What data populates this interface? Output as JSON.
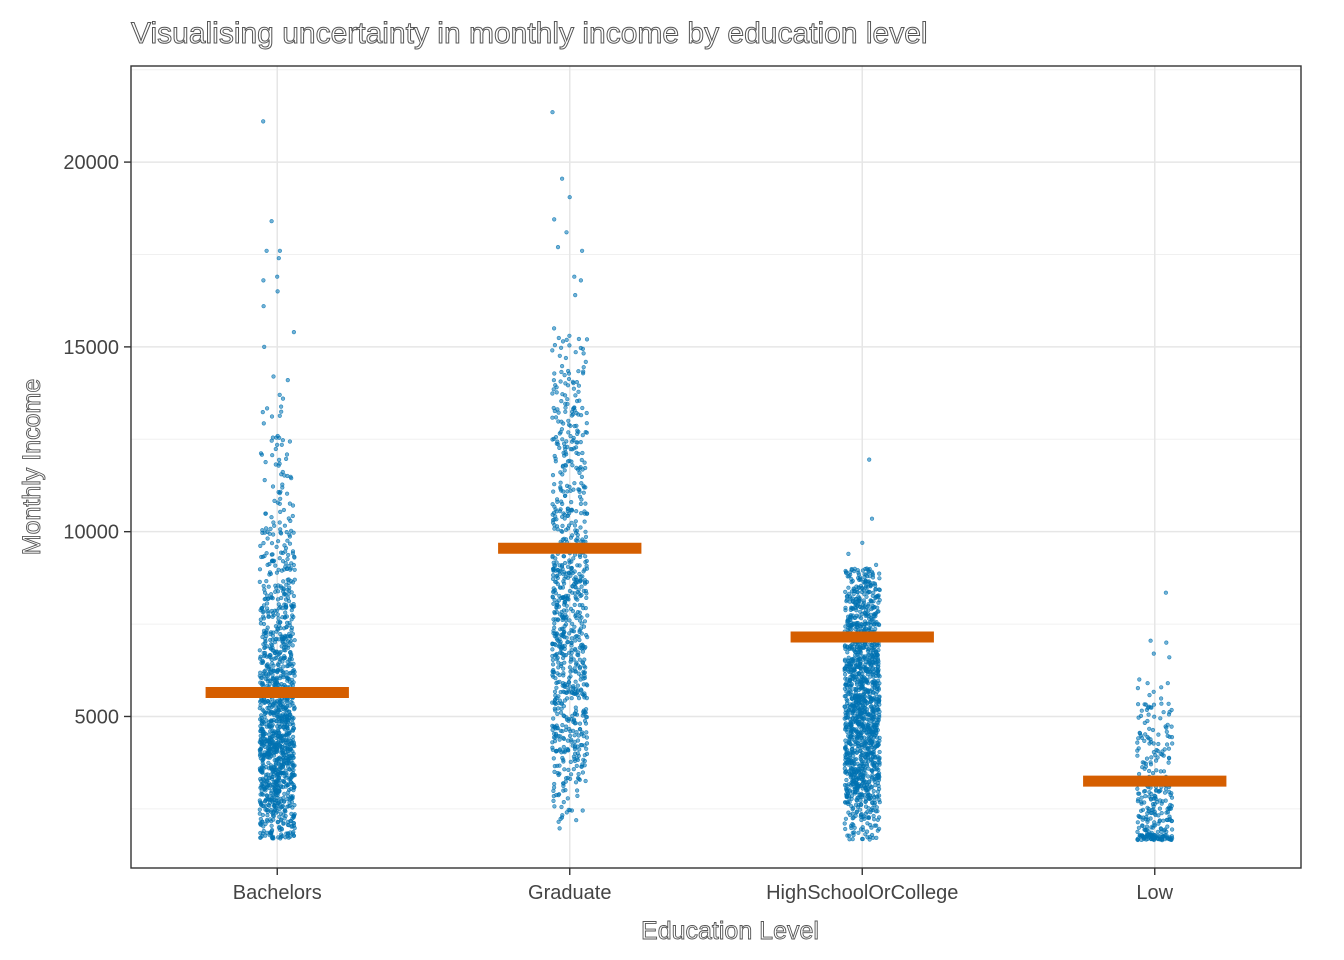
{
  "chart_data": {
    "type": "scatter",
    "subtype": "jitter-strip-with-mean-bars",
    "title": "Visualising uncertainty in monthly income by education level",
    "xlabel": "Education Level",
    "ylabel": "Monthly Income",
    "categories": [
      "Bachelors",
      "Graduate",
      "HighSchoolOrCollege",
      "Low"
    ],
    "ylim": [
      900,
      22600
    ],
    "yticks": [
      5000,
      10000,
      15000,
      20000
    ],
    "grid": true,
    "legend": "none",
    "colors": {
      "points": "#0072B2",
      "mean": "#D55E00"
    },
    "groups": [
      {
        "category": "Bachelors",
        "min": 1700,
        "max": 21100,
        "mean": 5650,
        "n": 1250,
        "outliers": [
          21100,
          18400,
          17600,
          17600,
          17400,
          16900,
          16800,
          16500,
          16100,
          15400,
          15000,
          14200,
          14100,
          13700,
          13600
        ]
      },
      {
        "category": "Graduate",
        "min": 1700,
        "max": 21350,
        "mean": 9550,
        "n": 850,
        "outliers": [
          21350,
          19550,
          19050,
          18450,
          18100,
          17700,
          17600,
          16900,
          16800,
          16400,
          15500,
          15300
        ]
      },
      {
        "category": "HighSchoolOrCollege",
        "min": 1650,
        "max": 11950,
        "mean": 7150,
        "n": 1400,
        "outliers": [
          11950,
          10350,
          9700,
          9400,
          9100,
          9000
        ]
      },
      {
        "category": "Low",
        "min": 1650,
        "max": 8350,
        "mean": 3250,
        "n": 300,
        "outliers": [
          8350,
          7050,
          7000,
          6700,
          6600,
          6000,
          5900
        ]
      }
    ]
  }
}
